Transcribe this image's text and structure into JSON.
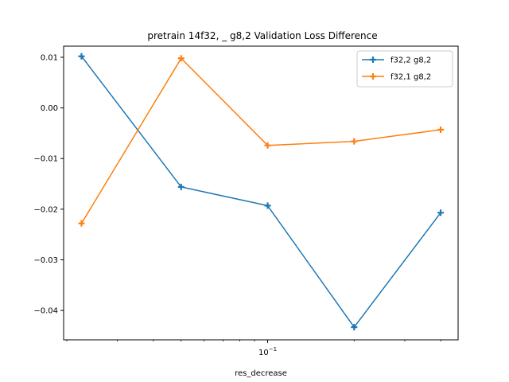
{
  "chart_data": {
    "type": "line",
    "title": "pretrain 14f32, _ g8,2 Validation Loss Difference",
    "xlabel": "res_decrease",
    "ylabel": "",
    "x_scale": "log",
    "x": [
      0.0225,
      0.05,
      0.1,
      0.2,
      0.4
    ],
    "xlim": [
      0.0195,
      0.46
    ],
    "x_ticks": [
      {
        "value": 0.1,
        "label": "10^{-1}",
        "base": "10",
        "exp": "−1"
      }
    ],
    "ylim": [
      -0.0458,
      0.0122
    ],
    "y_ticks": [
      0.01,
      0.0,
      -0.01,
      -0.02,
      -0.03,
      -0.04
    ],
    "y_tick_labels": [
      "0.01",
      "0.00",
      "−0.01",
      "−0.02",
      "−0.03",
      "−0.04"
    ],
    "grid": false,
    "legend_position": "top-right",
    "series": [
      {
        "name": "f32,2 g8,2",
        "color": "#1f77b4",
        "marker": "plus",
        "values": [
          0.0102,
          -0.0156,
          -0.0193,
          -0.0433,
          -0.0207
        ]
      },
      {
        "name": "f32,1 g8,2",
        "color": "#ff7f0e",
        "marker": "plus",
        "values": [
          -0.0228,
          0.0098,
          -0.0074,
          -0.0066,
          -0.0043
        ]
      }
    ]
  }
}
